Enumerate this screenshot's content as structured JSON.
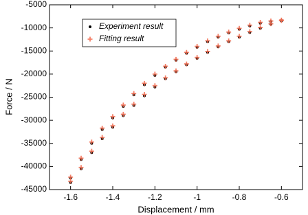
{
  "chart_data": {
    "type": "scatter",
    "xlabel": "Displacement / mm",
    "ylabel": "Force / N",
    "xlim": [
      -1.7,
      -0.5
    ],
    "xticks": [
      -1.6,
      -1.4,
      -1.2,
      -1,
      -0.8,
      -0.6
    ],
    "ylim": [
      -45000,
      -5000
    ],
    "yticks": [
      -45000,
      -40000,
      -35000,
      -30000,
      -25000,
      -20000,
      -15000,
      -10000,
      -5000
    ],
    "legend": "upper left",
    "series": [
      {
        "name": "Experiment result",
        "color": "#000000",
        "marker": "dot",
        "x": [
          -1.6,
          -1.55,
          -1.5,
          -1.45,
          -1.4,
          -1.35,
          -1.3,
          -1.25,
          -1.2,
          -1.15,
          -1.1,
          -1.05,
          -1.0,
          -0.95,
          -0.9,
          -0.85,
          -0.8,
          -0.75,
          -0.7,
          -0.65,
          -0.6,
          -1.6,
          -1.55,
          -1.5,
          -1.45,
          -1.4,
          -1.35,
          -1.3,
          -1.25,
          -1.2,
          -1.15,
          -1.1,
          -1.05,
          -1.0,
          -0.95,
          -0.9,
          -0.85,
          -0.8,
          -0.75,
          -0.7,
          -0.65,
          -0.6
        ],
        "y": [
          -42500,
          -38500,
          -35000,
          -32000,
          -29500,
          -27000,
          -24500,
          -22300,
          -20300,
          -18500,
          -17000,
          -15500,
          -14200,
          -13000,
          -12000,
          -11100,
          -10300,
          -9600,
          -9000,
          -8600,
          -8400,
          -43500,
          -40500,
          -37000,
          -34000,
          -31500,
          -29000,
          -26800,
          -24700,
          -22800,
          -21000,
          -19500,
          -18000,
          -16600,
          -15300,
          -14100,
          -13000,
          -12000,
          -11000,
          -10100,
          -9200,
          -8500
        ]
      },
      {
        "name": "Fitting result",
        "color": "#f26b4f",
        "marker": "plus",
        "x": [
          -1.6,
          -1.55,
          -1.5,
          -1.45,
          -1.4,
          -1.35,
          -1.3,
          -1.25,
          -1.2,
          -1.15,
          -1.1,
          -1.05,
          -1.0,
          -0.95,
          -0.9,
          -0.85,
          -0.8,
          -0.75,
          -0.7,
          -0.65,
          -0.6,
          -1.6,
          -1.55,
          -1.5,
          -1.45,
          -1.4,
          -1.35,
          -1.3,
          -1.25,
          -1.2,
          -1.15,
          -1.1,
          -1.05,
          -1.0,
          -0.95,
          -0.9,
          -0.85,
          -0.8,
          -0.75,
          -0.7,
          -0.65,
          -0.6
        ],
        "y": [
          -42300,
          -38200,
          -34700,
          -31700,
          -29200,
          -26700,
          -24200,
          -22000,
          -20000,
          -18300,
          -16800,
          -15300,
          -14000,
          -12800,
          -11800,
          -10900,
          -10100,
          -9400,
          -8800,
          -8500,
          -8300,
          -43200,
          -40200,
          -36700,
          -33700,
          -31200,
          -28700,
          -26500,
          -24400,
          -22500,
          -20800,
          -19300,
          -17800,
          -16400,
          -15100,
          -13900,
          -12800,
          -11800,
          -10800,
          -9900,
          -9100,
          -8400
        ]
      }
    ]
  }
}
